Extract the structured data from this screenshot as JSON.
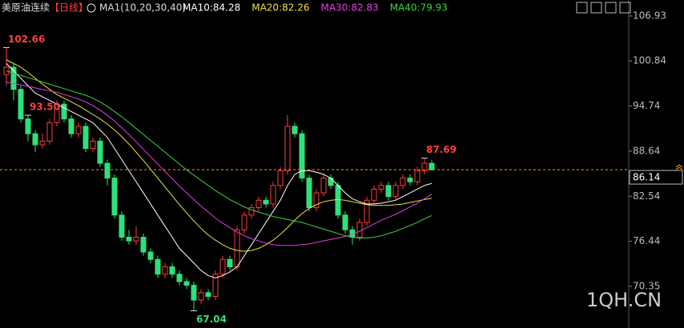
{
  "chart_data": {
    "type": "candlestick",
    "title": "美原油连续",
    "period": "【日线】",
    "indicator": "MA1(10,20,30,40)",
    "up_color": "#ff3b3b",
    "down_color": "#2ee07a",
    "ylim": [
      64.72,
      109.09
    ],
    "yticks": [
      106.93,
      100.84,
      94.74,
      88.64,
      82.54,
      76.44,
      70.35
    ],
    "last": 86.14,
    "open": [
      99,
      100,
      97,
      93,
      91,
      89.5,
      90,
      92.5,
      95,
      93,
      91,
      92,
      89,
      90,
      87,
      85,
      80,
      77,
      76.5,
      77,
      75,
      74,
      72,
      73,
      72,
      71,
      70.5,
      68.5,
      69.5,
      69,
      72,
      74,
      73,
      78,
      80,
      81,
      82,
      81.5,
      84,
      86,
      92,
      91,
      85,
      81,
      83,
      85,
      84,
      80,
      78,
      77,
      79,
      82,
      83.5,
      84,
      82.5,
      84,
      85,
      84.5,
      86,
      87
    ],
    "high": [
      102.66,
      100.5,
      97.5,
      93.5,
      91.5,
      91,
      93,
      95.5,
      95.5,
      93.5,
      92.5,
      92.5,
      90.5,
      90.5,
      87.5,
      85.5,
      80.5,
      78,
      78.5,
      77.5,
      75.5,
      74.5,
      73.5,
      73.5,
      72.5,
      71.5,
      71,
      70,
      70,
      72.5,
      74.5,
      74.5,
      78.5,
      80.5,
      81.5,
      82.5,
      82.5,
      84.5,
      86.5,
      93.5,
      92.5,
      91.5,
      85.5,
      83.5,
      85.5,
      85.5,
      84.5,
      80.5,
      78.5,
      79.5,
      82.5,
      84,
      84.5,
      84.5,
      84.5,
      85.5,
      85.5,
      86.5,
      87.69,
      87.5
    ],
    "low": [
      97.5,
      95.5,
      92.5,
      90,
      88.5,
      89,
      89.5,
      92,
      92.5,
      90.5,
      90.5,
      88.5,
      88.5,
      86.5,
      84,
      79.5,
      76.5,
      76,
      76,
      74.5,
      73.5,
      71.5,
      71.5,
      71.5,
      70.5,
      70,
      67.04,
      68,
      68.5,
      68.5,
      71.5,
      72.5,
      72.5,
      77.5,
      79.5,
      80.5,
      81,
      81,
      83.5,
      85.5,
      90.5,
      84.5,
      80.5,
      80.5,
      82.5,
      83.5,
      79.5,
      77.5,
      76,
      76.5,
      78.5,
      81.5,
      83,
      82,
      82,
      83.5,
      84,
      84,
      85.5,
      86
    ],
    "close": [
      100,
      97,
      93,
      91,
      89.5,
      90,
      92.5,
      95,
      93,
      91,
      92,
      89,
      90,
      87,
      85,
      80,
      77,
      76.5,
      77,
      75,
      74,
      72,
      73,
      72,
      71,
      70.5,
      68.5,
      69.5,
      69,
      72,
      74,
      73,
      78,
      80,
      81,
      82,
      81.5,
      84,
      86,
      92,
      91,
      85,
      81,
      83,
      85,
      84,
      80,
      78,
      77,
      79,
      82,
      83.5,
      84,
      82.5,
      84,
      85,
      84.5,
      86,
      87,
      86.14
    ],
    "high_labels": [
      {
        "value": 102.66,
        "label": "102.66"
      },
      {
        "value": 93.5,
        "label": "93.50"
      },
      {
        "value": 87.69,
        "label": "87.69"
      }
    ],
    "low_labels": [
      67.04
    ],
    "series": [
      {
        "name": "MA10:84.28",
        "color": "#ffffff",
        "values": [
          100.5,
          99.5,
          98.5,
          97.5,
          96.5,
          96,
          95.5,
          95,
          94.5,
          94,
          93.5,
          93,
          92.5,
          91.5,
          90.5,
          89,
          87.5,
          86,
          84.5,
          83,
          81.5,
          80,
          78.5,
          77,
          75.5,
          74.5,
          73.5,
          72.5,
          71.8,
          71.5,
          71.8,
          72.3,
          73,
          74.5,
          76,
          77.5,
          79,
          80.5,
          82,
          84,
          85.5,
          86,
          86,
          85.8,
          85.5,
          85,
          84,
          83,
          82.2,
          81.8,
          81.5,
          81.5,
          81.6,
          81.8,
          82,
          82.5,
          83,
          83.5,
          84,
          84.28
        ]
      },
      {
        "name": "MA20:82.26",
        "color": "#f0e040",
        "values": [
          101,
          100.5,
          100,
          99.3,
          98.5,
          97.7,
          97,
          96.3,
          95.8,
          95.3,
          94.8,
          94.2,
          93.6,
          93,
          92.3,
          91.5,
          90.6,
          89.6,
          88.5,
          87.4,
          86.2,
          85,
          83.8,
          82.6,
          81.4,
          80.3,
          79.2,
          78.2,
          77.3,
          76.6,
          76,
          75.5,
          75.2,
          75.1,
          75.2,
          75.5,
          76,
          76.6,
          77.4,
          78.3,
          79.3,
          80.2,
          80.9,
          81.4,
          81.8,
          82,
          82.1,
          82,
          81.8,
          81.6,
          81.4,
          81.3,
          81.3,
          81.3,
          81.4,
          81.5,
          81.7,
          81.9,
          82.1,
          82.26
        ]
      },
      {
        "name": "MA30:82.83",
        "color": "#e040e0",
        "values": [
          98,
          97.8,
          97.6,
          97.4,
          97.2,
          97,
          96.8,
          96.6,
          96.3,
          96,
          95.7,
          95.3,
          94.8,
          94.2,
          93.5,
          92.7,
          91.8,
          90.9,
          89.9,
          88.9,
          87.9,
          86.9,
          85.9,
          84.9,
          83.9,
          83,
          82.1,
          81.2,
          80.4,
          79.6,
          78.9,
          78.3,
          77.7,
          77.2,
          76.8,
          76.5,
          76.2,
          76,
          75.9,
          75.9,
          75.9,
          76,
          76.1,
          76.3,
          76.5,
          76.7,
          76.9,
          77.1,
          77.4,
          77.8,
          78.3,
          78.8,
          79.3,
          79.7,
          80.1,
          80.6,
          81.1,
          81.6,
          82.2,
          82.83
        ]
      },
      {
        "name": "MA40:79.93",
        "color": "#40d040",
        "values": [
          99.5,
          99.2,
          98.9,
          98.6,
          98.3,
          98,
          97.7,
          97.4,
          97.1,
          96.8,
          96.5,
          96.2,
          95.8,
          95.3,
          94.7,
          94,
          93.3,
          92.5,
          91.7,
          90.9,
          90.1,
          89.3,
          88.5,
          87.7,
          86.9,
          86.1,
          85.4,
          84.7,
          84,
          83.3,
          82.7,
          82.1,
          81.6,
          81.1,
          80.7,
          80.4,
          80.1,
          79.8,
          79.6,
          79.4,
          79.2,
          79,
          78.7,
          78.4,
          78.1,
          77.8,
          77.5,
          77.2,
          77,
          76.9,
          76.9,
          77,
          77.2,
          77.5,
          77.8,
          78.2,
          78.6,
          79,
          79.5,
          79.93
        ]
      }
    ]
  },
  "watermark": "1QH.CN"
}
